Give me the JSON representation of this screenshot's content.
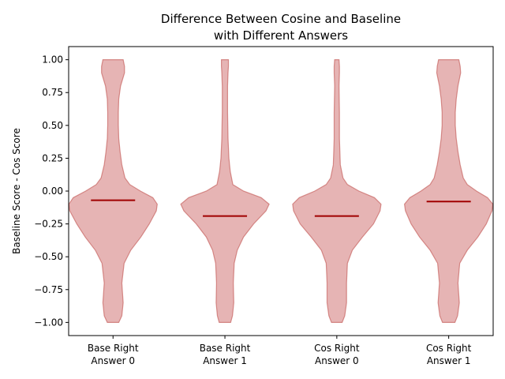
{
  "chart_data": {
    "type": "violin",
    "title_lines": [
      "Difference Between Cosine and Baseline",
      "with Different Answers"
    ],
    "xlabel": "",
    "ylabel": "Baseline Score - Cos Score",
    "ylim": [
      -1.1,
      1.1
    ],
    "yticks": [
      -1.0,
      -0.75,
      -0.5,
      -0.25,
      0.0,
      0.25,
      0.5,
      0.75,
      1.0
    ],
    "ytick_labels": [
      "−1.00",
      "−0.75",
      "−0.50",
      "−0.25",
      "0.00",
      "0.25",
      "0.50",
      "0.75",
      "1.00"
    ],
    "categories": [
      {
        "line1": "Base Right",
        "line2": "Answer 0"
      },
      {
        "line1": "Base Right",
        "line2": "Answer 1"
      },
      {
        "line1": "Cos Right",
        "line2": "Answer 0"
      },
      {
        "line1": "Cos Right",
        "line2": "Answer 1"
      }
    ],
    "grid": false,
    "colors": {
      "body": "#d98c8c",
      "edge": "#c0504d",
      "median": "#a00000"
    },
    "violins": [
      {
        "median": -0.07,
        "profile": [
          [
            -1.0,
            0.13
          ],
          [
            -0.95,
            0.2
          ],
          [
            -0.85,
            0.23
          ],
          [
            -0.7,
            0.2
          ],
          [
            -0.55,
            0.25
          ],
          [
            -0.45,
            0.4
          ],
          [
            -0.35,
            0.63
          ],
          [
            -0.25,
            0.82
          ],
          [
            -0.15,
            0.98
          ],
          [
            -0.1,
            1.0
          ],
          [
            -0.05,
            0.9
          ],
          [
            0.0,
            0.62
          ],
          [
            0.05,
            0.38
          ],
          [
            0.1,
            0.27
          ],
          [
            0.2,
            0.2
          ],
          [
            0.3,
            0.16
          ],
          [
            0.4,
            0.13
          ],
          [
            0.5,
            0.12
          ],
          [
            0.6,
            0.12
          ],
          [
            0.7,
            0.13
          ],
          [
            0.8,
            0.17
          ],
          [
            0.9,
            0.26
          ],
          [
            0.95,
            0.26
          ],
          [
            1.0,
            0.23
          ]
        ]
      },
      {
        "median": -0.19,
        "profile": [
          [
            -1.0,
            0.13
          ],
          [
            -0.95,
            0.17
          ],
          [
            -0.85,
            0.2
          ],
          [
            -0.7,
            0.19
          ],
          [
            -0.55,
            0.21
          ],
          [
            -0.45,
            0.28
          ],
          [
            -0.35,
            0.42
          ],
          [
            -0.25,
            0.65
          ],
          [
            -0.15,
            0.93
          ],
          [
            -0.1,
            1.0
          ],
          [
            -0.05,
            0.82
          ],
          [
            0.0,
            0.42
          ],
          [
            0.05,
            0.18
          ],
          [
            0.15,
            0.12
          ],
          [
            0.25,
            0.09
          ],
          [
            0.4,
            0.07
          ],
          [
            0.6,
            0.06
          ],
          [
            0.8,
            0.06
          ],
          [
            0.9,
            0.07
          ],
          [
            0.95,
            0.08
          ],
          [
            1.0,
            0.08
          ]
        ]
      },
      {
        "median": -0.19,
        "profile": [
          [
            -1.0,
            0.12
          ],
          [
            -0.95,
            0.18
          ],
          [
            -0.85,
            0.22
          ],
          [
            -0.7,
            0.22
          ],
          [
            -0.55,
            0.24
          ],
          [
            -0.45,
            0.35
          ],
          [
            -0.35,
            0.58
          ],
          [
            -0.25,
            0.83
          ],
          [
            -0.15,
            0.98
          ],
          [
            -0.1,
            1.0
          ],
          [
            -0.05,
            0.85
          ],
          [
            0.0,
            0.5
          ],
          [
            0.05,
            0.24
          ],
          [
            0.1,
            0.14
          ],
          [
            0.2,
            0.08
          ],
          [
            0.4,
            0.06
          ],
          [
            0.6,
            0.06
          ],
          [
            0.8,
            0.05
          ],
          [
            0.9,
            0.06
          ],
          [
            0.95,
            0.06
          ],
          [
            1.0,
            0.05
          ]
        ]
      },
      {
        "median": -0.08,
        "profile": [
          [
            -1.0,
            0.14
          ],
          [
            -0.95,
            0.2
          ],
          [
            -0.85,
            0.24
          ],
          [
            -0.7,
            0.21
          ],
          [
            -0.55,
            0.25
          ],
          [
            -0.45,
            0.42
          ],
          [
            -0.35,
            0.66
          ],
          [
            -0.25,
            0.85
          ],
          [
            -0.15,
            0.98
          ],
          [
            -0.1,
            1.0
          ],
          [
            -0.05,
            0.88
          ],
          [
            0.0,
            0.63
          ],
          [
            0.05,
            0.42
          ],
          [
            0.1,
            0.33
          ],
          [
            0.2,
            0.26
          ],
          [
            0.3,
            0.21
          ],
          [
            0.4,
            0.17
          ],
          [
            0.5,
            0.15
          ],
          [
            0.6,
            0.15
          ],
          [
            0.7,
            0.17
          ],
          [
            0.8,
            0.21
          ],
          [
            0.9,
            0.27
          ],
          [
            0.95,
            0.26
          ],
          [
            1.0,
            0.23
          ]
        ]
      }
    ]
  }
}
